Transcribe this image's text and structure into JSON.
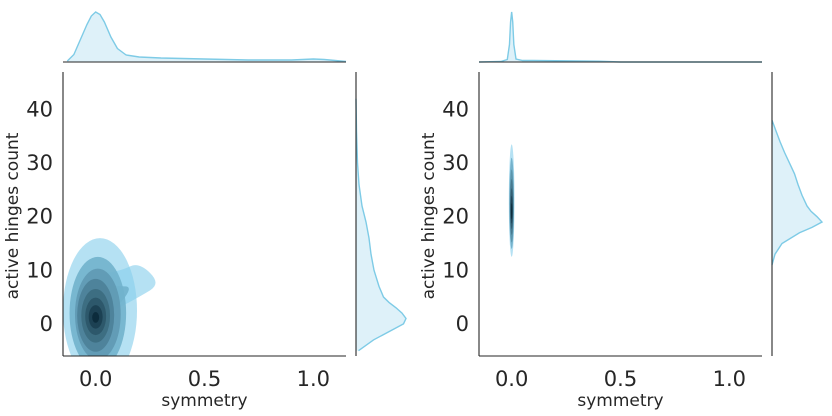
{
  "chart_data": [
    {
      "type": "kde_joint",
      "xlabel": "symmetry",
      "ylabel": "active hinges count",
      "xlim": [
        -0.15,
        1.15
      ],
      "ylim": [
        -6,
        47
      ],
      "xticks": [
        0.0,
        0.5,
        1.0
      ],
      "xtick_labels": [
        "0.0",
        "0.5",
        "1.0"
      ],
      "yticks": [
        0,
        10,
        20,
        30,
        40
      ],
      "ytick_labels": [
        "0",
        "10",
        "20",
        "30",
        "40"
      ],
      "grid": false,
      "colors": {
        "fill": "#87ceeb",
        "dark": "#0b2a3a",
        "margin_line": "#7ecbe6"
      },
      "joint_levels": [
        {
          "cx": 0.02,
          "cy": 2.5,
          "rx": 0.17,
          "ry": 13.5,
          "tail": [
            [
              0.12,
              10
            ],
            [
              0.2,
              11.5
            ],
            [
              0.3,
              7.5
            ],
            [
              0.2,
              5
            ]
          ]
        },
        {
          "cx": 0.01,
          "cy": 2.0,
          "rx": 0.13,
          "ry": 10.5,
          "tail": [
            [
              0.1,
              7
            ],
            [
              0.17,
              7
            ],
            [
              0.1,
              3
            ]
          ]
        },
        {
          "cx": 0.01,
          "cy": 1.8,
          "rx": 0.105,
          "ry": 8.5
        },
        {
          "cx": 0.0,
          "cy": 1.6,
          "rx": 0.085,
          "ry": 6.8
        },
        {
          "cx": 0.0,
          "cy": 1.5,
          "rx": 0.066,
          "ry": 5.0
        },
        {
          "cx": 0.0,
          "cy": 1.4,
          "rx": 0.048,
          "ry": 3.5
        },
        {
          "cx": 0.0,
          "cy": 1.3,
          "rx": 0.032,
          "ry": 2.2
        },
        {
          "cx": 0.0,
          "cy": 1.2,
          "rx": 0.016,
          "ry": 1.0
        }
      ],
      "marginal_x": {
        "x": [
          -0.13,
          -0.1,
          -0.07,
          -0.04,
          -0.02,
          0.0,
          0.02,
          0.04,
          0.07,
          0.1,
          0.14,
          0.2,
          0.3,
          0.4,
          0.5,
          0.6,
          0.7,
          0.8,
          0.9,
          1.0,
          1.05,
          1.1,
          1.15
        ],
        "density": [
          0.02,
          0.15,
          0.45,
          0.75,
          0.92,
          1.0,
          0.95,
          0.8,
          0.5,
          0.27,
          0.14,
          0.1,
          0.08,
          0.07,
          0.06,
          0.05,
          0.04,
          0.04,
          0.04,
          0.06,
          0.05,
          0.03,
          0.01
        ]
      },
      "marginal_y": {
        "y": [
          -5,
          -3,
          -1,
          0,
          1,
          2,
          3,
          4,
          5,
          7,
          10,
          13,
          16,
          19,
          22,
          26,
          30,
          36,
          42
        ],
        "density": [
          0.05,
          0.35,
          0.75,
          0.95,
          1.0,
          0.92,
          0.8,
          0.66,
          0.55,
          0.46,
          0.36,
          0.3,
          0.26,
          0.2,
          0.12,
          0.06,
          0.03,
          0.01,
          0.0
        ]
      }
    },
    {
      "type": "kde_joint",
      "xlabel": "symmetry",
      "ylabel": "active hinges count",
      "xlim": [
        -0.15,
        1.15
      ],
      "ylim": [
        -6,
        47
      ],
      "xticks": [
        0.0,
        0.5,
        1.0
      ],
      "xtick_labels": [
        "0.0",
        "0.5",
        "1.0"
      ],
      "yticks": [
        0,
        10,
        20,
        30,
        40
      ],
      "ytick_labels": [
        "0",
        "10",
        "20",
        "30",
        "40"
      ],
      "grid": false,
      "colors": {
        "fill": "#87ceeb",
        "dark": "#0b2a3a",
        "margin_line": "#7ecbe6"
      },
      "joint_levels": [
        {
          "cx": 0.0,
          "cy": 23.0,
          "rx": 0.013,
          "ry": 10.5
        },
        {
          "cx": 0.0,
          "cy": 22.5,
          "rx": 0.011,
          "ry": 8.5
        },
        {
          "cx": 0.0,
          "cy": 22.0,
          "rx": 0.009,
          "ry": 6.8
        },
        {
          "cx": 0.0,
          "cy": 21.8,
          "rx": 0.0075,
          "ry": 5.2
        },
        {
          "cx": 0.0,
          "cy": 21.5,
          "rx": 0.006,
          "ry": 3.8
        },
        {
          "cx": 0.0,
          "cy": 21.3,
          "rx": 0.0045,
          "ry": 2.6
        },
        {
          "cx": 0.0,
          "cy": 21.0,
          "rx": 0.003,
          "ry": 1.5
        }
      ],
      "marginal_x": {
        "x": [
          -0.15,
          -0.05,
          -0.02,
          -0.01,
          -0.005,
          0.0,
          0.005,
          0.01,
          0.02,
          0.05,
          0.1,
          0.2,
          0.3,
          0.4,
          0.5,
          0.8,
          1.15
        ],
        "density": [
          0.0,
          0.01,
          0.05,
          0.35,
          0.8,
          1.0,
          0.8,
          0.35,
          0.06,
          0.03,
          0.03,
          0.025,
          0.02,
          0.015,
          0.0,
          0.0,
          0.0
        ]
      },
      "marginal_y": {
        "y": [
          11,
          13,
          15,
          17,
          18,
          19,
          20,
          21,
          22,
          24,
          26,
          28,
          30,
          32,
          34,
          36,
          38
        ],
        "density": [
          0.0,
          0.06,
          0.2,
          0.55,
          0.8,
          1.0,
          0.9,
          0.78,
          0.7,
          0.6,
          0.52,
          0.45,
          0.35,
          0.25,
          0.16,
          0.08,
          0.0
        ]
      }
    }
  ]
}
